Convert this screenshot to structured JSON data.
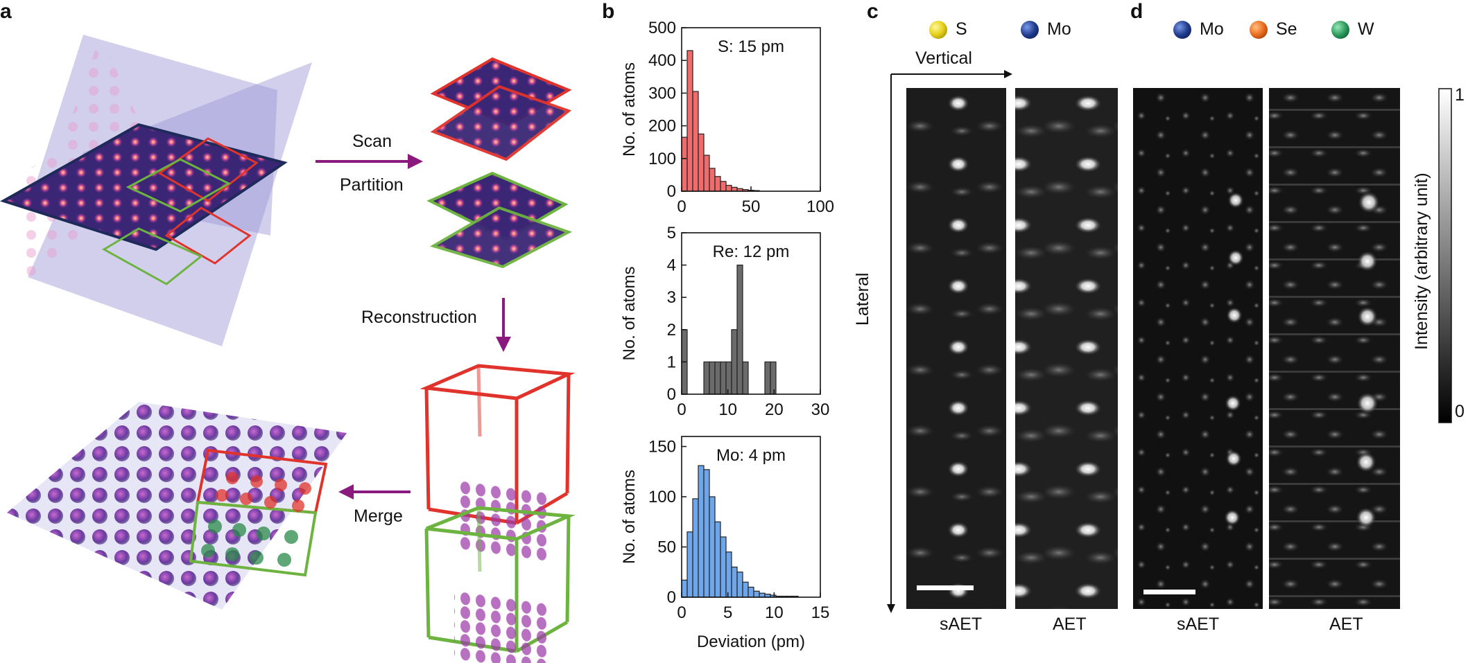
{
  "panel_labels": {
    "a": "a",
    "b": "b",
    "c": "c",
    "d": "d"
  },
  "panel_a": {
    "scan_label": "Scan",
    "partition_label": "Partition",
    "reconstruction_label": "Reconstruction",
    "merge_label": "Merge",
    "colors": {
      "arrow": "#8b1a7f",
      "red": "#e0332c",
      "green": "#6db33f",
      "plane": "#9b95d6",
      "lattice": "#4b2a7a"
    }
  },
  "chart_data": [
    {
      "type": "bar",
      "panel": "b-top",
      "annotation": "S: 15 pm",
      "ylabel": "No. of atoms",
      "xlabel": "",
      "xlim": [
        0,
        100
      ],
      "ylim": [
        0,
        500
      ],
      "xticks": [
        0,
        50,
        100
      ],
      "yticks": [
        0,
        100,
        200,
        300,
        400,
        500
      ],
      "bin_width": 4,
      "bin_starts": [
        0,
        4,
        8,
        12,
        16,
        20,
        24,
        28,
        32,
        36,
        40,
        44,
        48,
        52
      ],
      "values": [
        165,
        430,
        305,
        175,
        110,
        70,
        45,
        30,
        18,
        12,
        8,
        5,
        3,
        2
      ],
      "color": "#f06b6b"
    },
    {
      "type": "bar",
      "panel": "b-mid",
      "annotation": "Re: 12 pm",
      "ylabel": "No. of atoms",
      "xlabel": "",
      "xlim": [
        0,
        30
      ],
      "ylim": [
        0,
        5
      ],
      "xticks": [
        0,
        10,
        20,
        30
      ],
      "yticks": [
        0,
        1,
        2,
        3,
        4,
        5
      ],
      "bin_width": 1.2,
      "bin_starts": [
        0,
        4.8,
        6,
        7.2,
        8.4,
        9.6,
        10.8,
        12,
        13.2,
        18,
        19.2
      ],
      "values": [
        2,
        1,
        1,
        1,
        1,
        1,
        2,
        4,
        1,
        1,
        1
      ],
      "color": "#6b6b6b"
    },
    {
      "type": "bar",
      "panel": "b-bottom",
      "annotation": "Mo: 4 pm",
      "ylabel": "No. of atoms",
      "xlabel": "Deviation (pm)",
      "xlim": [
        0,
        15
      ],
      "ylim": [
        0,
        160
      ],
      "xticks": [
        0,
        5,
        10,
        15
      ],
      "yticks": [
        0,
        50,
        100,
        150
      ],
      "bin_width": 0.6,
      "bin_starts": [
        0,
        0.6,
        1.2,
        1.8,
        2.4,
        3,
        3.6,
        4.2,
        4.8,
        5.4,
        6,
        6.6,
        7.2,
        7.8,
        8.4,
        9,
        9.6,
        10.2,
        10.8,
        11.4,
        12
      ],
      "values": [
        17,
        65,
        98,
        131,
        127,
        100,
        75,
        60,
        45,
        30,
        25,
        15,
        10,
        6,
        4,
        3,
        2,
        1,
        1,
        1,
        1
      ],
      "color": "#6ea6ec"
    }
  ],
  "panel_c": {
    "legend": [
      {
        "symbol": "S",
        "color": "#e8d31c"
      },
      {
        "symbol": "Mo",
        "color": "#1f3b8c"
      }
    ],
    "vertical_label": "Vertical",
    "lateral_label": "Lateral",
    "image_labels": [
      "sAET",
      "AET"
    ]
  },
  "panel_d": {
    "legend": [
      {
        "symbol": "Mo",
        "color": "#1f3b8c"
      },
      {
        "symbol": "Se",
        "color": "#e86a1c"
      },
      {
        "symbol": "W",
        "color": "#2a9a5a"
      }
    ],
    "image_labels": [
      "sAET",
      "AET"
    ],
    "colorbar": {
      "label": "Intensity (arbitrary unit)",
      "max_label": "1",
      "min_label": "0"
    }
  }
}
